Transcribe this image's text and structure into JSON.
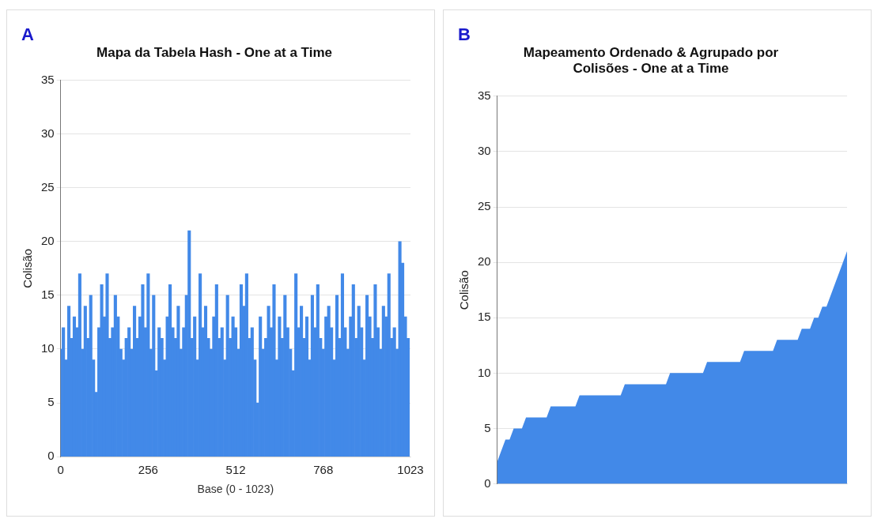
{
  "chart_data": [
    {
      "type": "bar",
      "title": "Mapa da Tabela Hash - One at a Time",
      "xlabel": "Base (0 - 1023)",
      "ylabel": "Colisão",
      "annotations": [
        "A"
      ],
      "color": "#4289e8",
      "grid": "y",
      "legend": false,
      "x": [
        0,
        8,
        16,
        24,
        32,
        40,
        48,
        56,
        64,
        72,
        80,
        88,
        96,
        104,
        112,
        120,
        128,
        136,
        144,
        152,
        160,
        168,
        176,
        184,
        192,
        200,
        208,
        216,
        224,
        232,
        240,
        248,
        256,
        264,
        272,
        280,
        288,
        296,
        304,
        312,
        320,
        328,
        336,
        344,
        352,
        360,
        368,
        376,
        384,
        392,
        400,
        408,
        416,
        424,
        432,
        440,
        448,
        456,
        464,
        472,
        480,
        488,
        496,
        504,
        512,
        520,
        528,
        536,
        544,
        552,
        560,
        568,
        576,
        584,
        592,
        600,
        608,
        616,
        624,
        632,
        640,
        648,
        656,
        664,
        672,
        680,
        688,
        696,
        704,
        712,
        720,
        728,
        736,
        744,
        752,
        760,
        768,
        776,
        784,
        792,
        800,
        808,
        816,
        824,
        832,
        840,
        848,
        856,
        864,
        872,
        880,
        888,
        896,
        904,
        912,
        920,
        928,
        936,
        944,
        952,
        960,
        968,
        976,
        984,
        992,
        1000,
        1008,
        1016
      ],
      "values": [
        10,
        12,
        9,
        14,
        11,
        13,
        12,
        17,
        10,
        14,
        11,
        15,
        9,
        6,
        12,
        16,
        13,
        17,
        11,
        12,
        15,
        13,
        10,
        9,
        11,
        12,
        10,
        14,
        11,
        13,
        16,
        12,
        17,
        10,
        15,
        8,
        12,
        11,
        9,
        13,
        16,
        12,
        11,
        14,
        10,
        12,
        15,
        21,
        11,
        13,
        9,
        17,
        12,
        14,
        11,
        10,
        13,
        16,
        11,
        12,
        9,
        15,
        11,
        13,
        12,
        10,
        16,
        14,
        17,
        11,
        12,
        9,
        5,
        13,
        10,
        11,
        14,
        12,
        16,
        9,
        13,
        11,
        15,
        12,
        10,
        8,
        17,
        12,
        14,
        11,
        13,
        9,
        15,
        12,
        16,
        11,
        10,
        13,
        14,
        12,
        9,
        15,
        11,
        17,
        12,
        10,
        13,
        16,
        11,
        14,
        12,
        9,
        15,
        13,
        11,
        16,
        12,
        10,
        14,
        13,
        17,
        11,
        12,
        10,
        20,
        18,
        13,
        11
      ],
      "xlim": [
        0,
        1023
      ],
      "xticks": [
        0,
        256,
        512,
        768,
        1023
      ],
      "ylim": [
        0,
        35
      ],
      "yticks": [
        0,
        5,
        10,
        15,
        20,
        25,
        30,
        35
      ]
    },
    {
      "type": "area",
      "title": "Mapeamento Ordenado & Agrupado por Colisões - One at a Time",
      "ylabel": "Colisão",
      "annotations": [
        "B"
      ],
      "color": "#4289e8",
      "grid": "y",
      "legend": false,
      "categories": [
        null,
        null,
        null,
        null,
        null,
        null,
        null,
        null,
        null,
        null,
        null,
        null,
        null,
        null,
        null,
        null,
        null,
        null,
        null,
        null,
        null,
        null,
        null,
        null,
        null,
        null,
        null,
        null,
        null,
        null,
        null,
        null,
        null,
        null,
        null,
        null,
        null,
        null,
        null,
        null,
        null,
        null,
        null,
        null,
        null,
        null,
        null,
        null,
        null,
        null,
        null,
        null,
        null,
        null,
        null,
        null,
        null,
        null,
        null,
        null,
        null,
        null,
        null,
        null,
        null,
        null,
        null,
        null,
        null,
        null,
        null,
        null,
        null,
        null,
        null,
        null,
        null,
        null,
        null,
        null,
        null,
        null,
        null,
        null,
        null,
        null
      ],
      "values": [
        2,
        3,
        4,
        4,
        5,
        5,
        5,
        6,
        6,
        6,
        6,
        6,
        6,
        7,
        7,
        7,
        7,
        7,
        7,
        7,
        8,
        8,
        8,
        8,
        8,
        8,
        8,
        8,
        8,
        8,
        8,
        9,
        9,
        9,
        9,
        9,
        9,
        9,
        9,
        9,
        9,
        9,
        10,
        10,
        10,
        10,
        10,
        10,
        10,
        10,
        10,
        11,
        11,
        11,
        11,
        11,
        11,
        11,
        11,
        11,
        12,
        12,
        12,
        12,
        12,
        12,
        12,
        12,
        13,
        13,
        13,
        13,
        13,
        13,
        14,
        14,
        14,
        15,
        15,
        16,
        16,
        17,
        18,
        19,
        20,
        21
      ],
      "ylim": [
        0,
        35
      ],
      "yticks": [
        0,
        5,
        10,
        15,
        20,
        25,
        30,
        35
      ]
    }
  ]
}
